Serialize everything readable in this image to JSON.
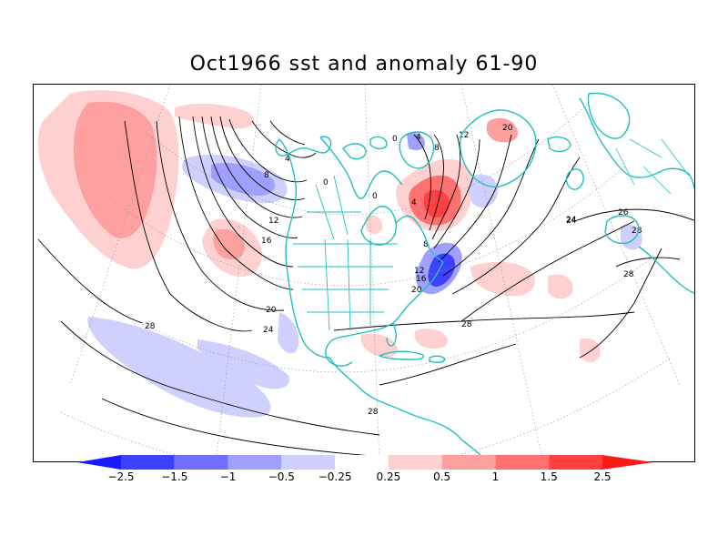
{
  "title": "Oct1966 sst and anomaly 61-90",
  "colorbar": {
    "levels": [
      "-2.5",
      "-1.5",
      "-1",
      "-0.5",
      "-0.25",
      "0.25",
      "0.5",
      "1",
      "1.5",
      "2.5"
    ],
    "colors": [
      "#1a1aff",
      "#4040ff",
      "#7070ff",
      "#a0a0ff",
      "#d0d0ff",
      "#ffffff",
      "#ffd0d0",
      "#ffa0a0",
      "#ff7070",
      "#ff4040",
      "#ff1a1a"
    ]
  },
  "contour_labels": [
    "28",
    "24",
    "20",
    "16",
    "12",
    "8",
    "4",
    "0",
    "28",
    "24",
    "20",
    "16",
    "12",
    "8",
    "4",
    "0",
    "0",
    "4",
    "8",
    "12",
    "20",
    "24",
    "26",
    "28",
    "28",
    "28"
  ],
  "colors": {
    "coastline": "#20c0c0",
    "contour": "#000000",
    "grid": "#909090"
  }
}
